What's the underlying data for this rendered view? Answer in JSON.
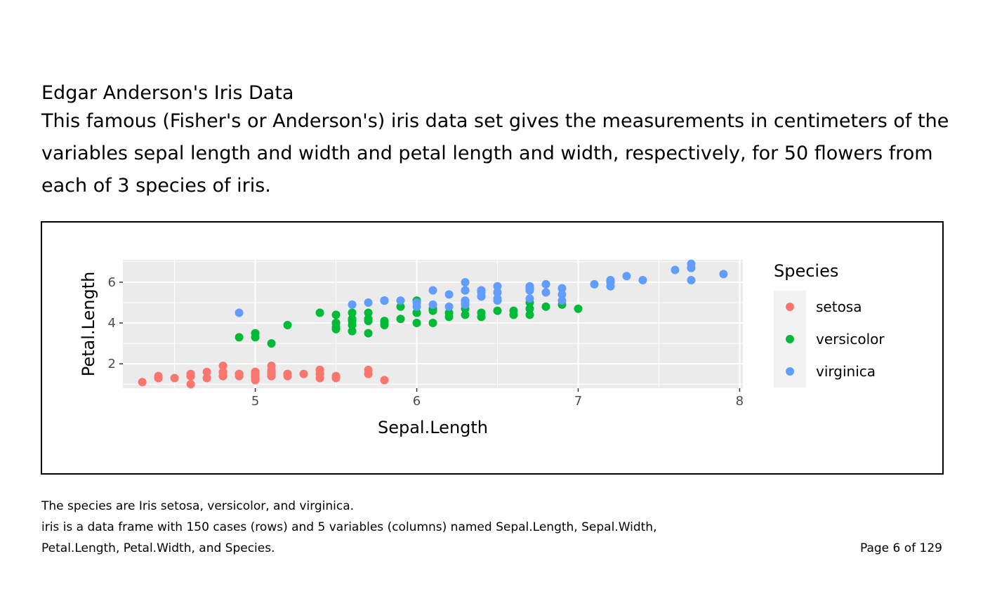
{
  "doc": {
    "heading": "Edgar Anderson's Iris Data",
    "description": "This famous (Fisher's or Anderson's) iris data set gives the measurements in centimeters of the variables sepal length and width and petal length and width, respectively, for 50 flowers from each of 3 species of iris.",
    "footer_line1": "The species are Iris setosa, versicolor, and virginica.",
    "footer_line2": "iris is a data frame with 150 cases (rows) and 5 variables (columns) named Sepal.Length, Sepal.Width,",
    "footer_line3": "Petal.Length, Petal.Width, and Species.",
    "page_number": "Page 6 of 129"
  },
  "chart_data": {
    "type": "scatter",
    "xlabel": "Sepal.Length",
    "ylabel": "Petal.Length",
    "xlim": [
      4.18,
      8.02
    ],
    "ylim": [
      0.8,
      7.1
    ],
    "xticks": [
      5,
      6,
      7,
      8
    ],
    "yticks": [
      2,
      4,
      6
    ],
    "grid": true,
    "panel_background": "#EBEBEB",
    "legend": {
      "title": "Species",
      "position": "right"
    },
    "series": [
      {
        "name": "setosa",
        "color": "#F8766D",
        "points": [
          [
            5.1,
            1.4
          ],
          [
            4.9,
            1.4
          ],
          [
            4.7,
            1.3
          ],
          [
            4.6,
            1.5
          ],
          [
            5.0,
            1.4
          ],
          [
            5.4,
            1.7
          ],
          [
            4.6,
            1.4
          ],
          [
            5.0,
            1.5
          ],
          [
            4.4,
            1.4
          ],
          [
            4.9,
            1.5
          ],
          [
            5.4,
            1.5
          ],
          [
            4.8,
            1.6
          ],
          [
            4.8,
            1.4
          ],
          [
            4.3,
            1.1
          ],
          [
            5.8,
            1.2
          ],
          [
            5.7,
            1.5
          ],
          [
            5.4,
            1.3
          ],
          [
            5.1,
            1.4
          ],
          [
            5.7,
            1.7
          ],
          [
            5.1,
            1.5
          ],
          [
            5.4,
            1.7
          ],
          [
            5.1,
            1.5
          ],
          [
            4.6,
            1.0
          ],
          [
            5.1,
            1.7
          ],
          [
            4.8,
            1.9
          ],
          [
            5.0,
            1.6
          ],
          [
            5.0,
            1.6
          ],
          [
            5.2,
            1.5
          ],
          [
            5.2,
            1.4
          ],
          [
            4.7,
            1.6
          ],
          [
            4.8,
            1.6
          ],
          [
            5.4,
            1.5
          ],
          [
            5.2,
            1.5
          ],
          [
            5.5,
            1.4
          ],
          [
            4.9,
            1.5
          ],
          [
            5.0,
            1.2
          ],
          [
            5.5,
            1.3
          ],
          [
            4.9,
            1.4
          ],
          [
            4.4,
            1.3
          ],
          [
            5.1,
            1.5
          ],
          [
            5.0,
            1.3
          ],
          [
            4.5,
            1.3
          ],
          [
            4.4,
            1.3
          ],
          [
            5.0,
            1.6
          ],
          [
            5.1,
            1.9
          ],
          [
            4.8,
            1.4
          ],
          [
            5.1,
            1.6
          ],
          [
            4.6,
            1.4
          ],
          [
            5.3,
            1.5
          ],
          [
            5.0,
            1.4
          ]
        ]
      },
      {
        "name": "versicolor",
        "color": "#00BA38",
        "points": [
          [
            7.0,
            4.7
          ],
          [
            6.4,
            4.5
          ],
          [
            6.9,
            4.9
          ],
          [
            5.5,
            4.0
          ],
          [
            6.5,
            4.6
          ],
          [
            5.7,
            4.5
          ],
          [
            6.3,
            4.7
          ],
          [
            4.9,
            3.3
          ],
          [
            6.6,
            4.6
          ],
          [
            5.2,
            3.9
          ],
          [
            5.0,
            3.5
          ],
          [
            5.9,
            4.2
          ],
          [
            6.0,
            4.0
          ],
          [
            6.1,
            4.7
          ],
          [
            5.6,
            3.6
          ],
          [
            6.7,
            4.4
          ],
          [
            5.6,
            4.5
          ],
          [
            5.8,
            4.1
          ],
          [
            6.2,
            4.5
          ],
          [
            5.6,
            3.9
          ],
          [
            5.9,
            4.8
          ],
          [
            6.1,
            4.0
          ],
          [
            6.3,
            4.9
          ],
          [
            6.1,
            4.7
          ],
          [
            6.4,
            4.3
          ],
          [
            6.6,
            4.4
          ],
          [
            6.8,
            4.8
          ],
          [
            6.7,
            5.0
          ],
          [
            6.0,
            4.5
          ],
          [
            5.7,
            3.5
          ],
          [
            5.5,
            3.8
          ],
          [
            5.5,
            3.7
          ],
          [
            5.8,
            3.9
          ],
          [
            6.0,
            5.1
          ],
          [
            5.4,
            4.5
          ],
          [
            6.0,
            4.5
          ],
          [
            6.7,
            4.7
          ],
          [
            6.3,
            4.4
          ],
          [
            5.6,
            4.1
          ],
          [
            5.5,
            4.0
          ],
          [
            5.5,
            4.4
          ],
          [
            6.1,
            4.6
          ],
          [
            5.8,
            4.0
          ],
          [
            5.0,
            3.3
          ],
          [
            5.6,
            4.2
          ],
          [
            5.7,
            4.2
          ],
          [
            5.7,
            4.2
          ],
          [
            6.2,
            4.3
          ],
          [
            5.1,
            3.0
          ],
          [
            5.7,
            4.1
          ]
        ]
      },
      {
        "name": "virginica",
        "color": "#619CFF",
        "points": [
          [
            6.3,
            6.0
          ],
          [
            5.8,
            5.1
          ],
          [
            7.1,
            5.9
          ],
          [
            6.3,
            5.6
          ],
          [
            6.5,
            5.8
          ],
          [
            7.6,
            6.6
          ],
          [
            4.9,
            4.5
          ],
          [
            7.3,
            6.3
          ],
          [
            6.7,
            5.8
          ],
          [
            7.2,
            6.1
          ],
          [
            6.5,
            5.1
          ],
          [
            6.4,
            5.3
          ],
          [
            6.8,
            5.5
          ],
          [
            5.7,
            5.0
          ],
          [
            5.8,
            5.1
          ],
          [
            6.4,
            5.3
          ],
          [
            6.5,
            5.5
          ],
          [
            7.7,
            6.7
          ],
          [
            7.7,
            6.9
          ],
          [
            6.0,
            5.0
          ],
          [
            6.9,
            5.7
          ],
          [
            5.6,
            4.9
          ],
          [
            7.7,
            6.7
          ],
          [
            6.3,
            4.9
          ],
          [
            6.7,
            5.7
          ],
          [
            7.2,
            6.0
          ],
          [
            6.2,
            4.8
          ],
          [
            6.1,
            4.9
          ],
          [
            6.4,
            5.6
          ],
          [
            7.2,
            5.8
          ],
          [
            7.4,
            6.1
          ],
          [
            7.9,
            6.4
          ],
          [
            6.4,
            5.6
          ],
          [
            6.3,
            5.1
          ],
          [
            6.1,
            5.6
          ],
          [
            7.7,
            6.1
          ],
          [
            6.3,
            5.6
          ],
          [
            6.4,
            5.5
          ],
          [
            6.0,
            4.8
          ],
          [
            6.9,
            5.4
          ],
          [
            6.7,
            5.6
          ],
          [
            6.9,
            5.1
          ],
          [
            5.8,
            5.1
          ],
          [
            6.8,
            5.9
          ],
          [
            6.7,
            5.7
          ],
          [
            6.7,
            5.2
          ],
          [
            6.3,
            5.0
          ],
          [
            6.5,
            5.2
          ],
          [
            6.2,
            5.4
          ],
          [
            5.9,
            5.1
          ]
        ]
      }
    ]
  }
}
